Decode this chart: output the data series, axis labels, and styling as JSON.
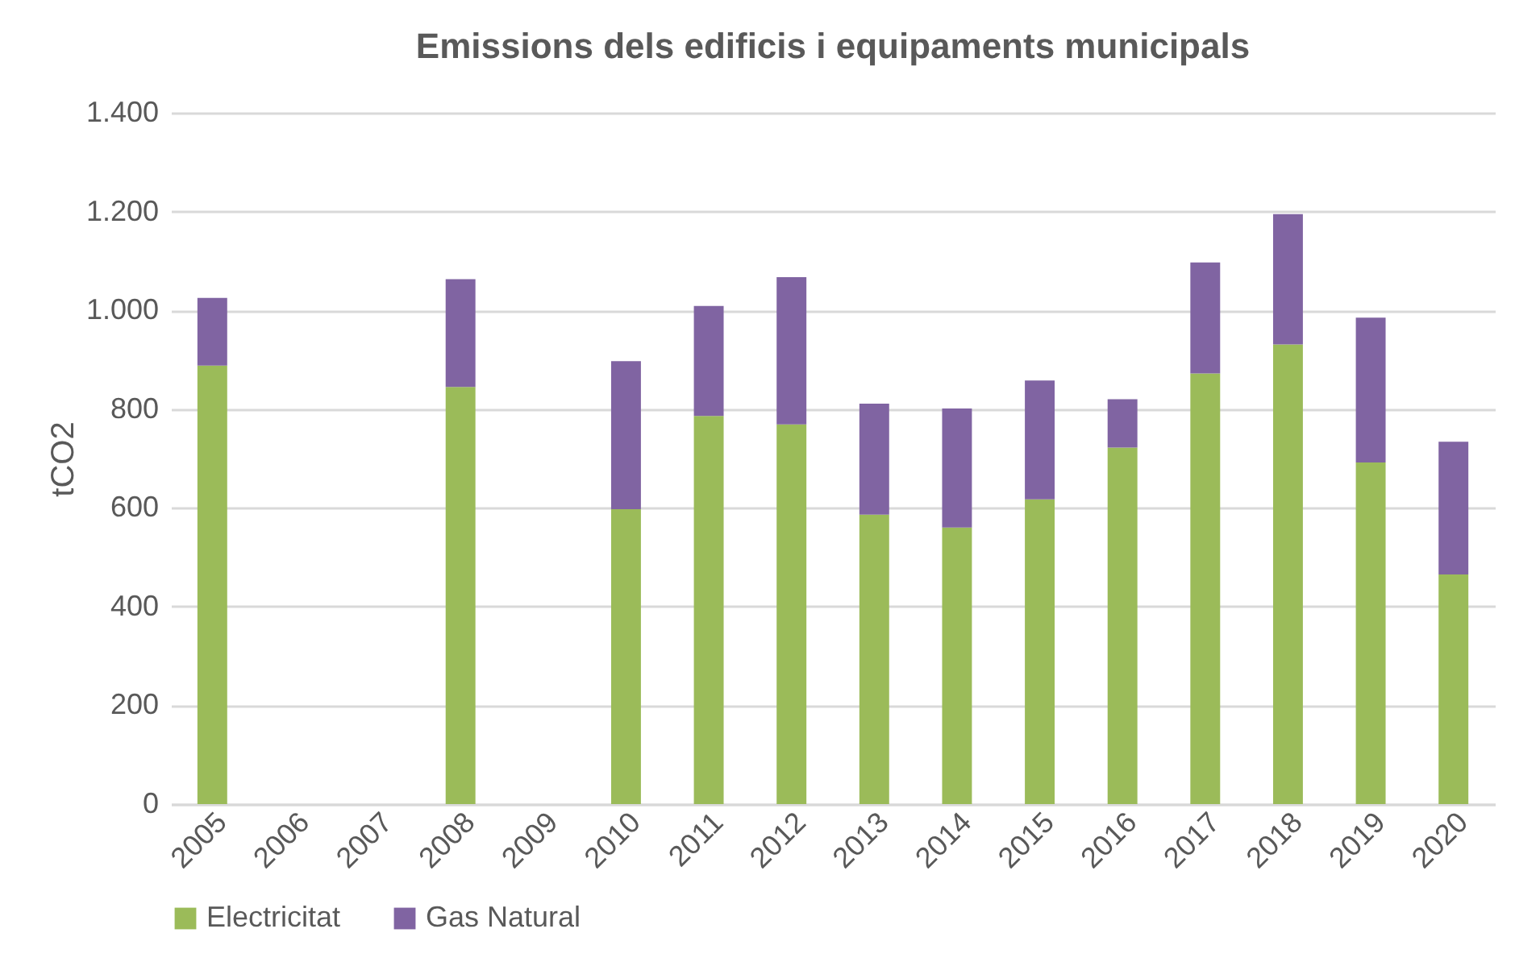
{
  "chart_data": {
    "type": "bar",
    "title": "Emissions dels edificis i equipaments municipals",
    "ylabel": "tCO2",
    "stacked": true,
    "categories": [
      "2005",
      "2006",
      "2007",
      "2008",
      "2009",
      "2010",
      "2011",
      "2012",
      "2013",
      "2014",
      "2015",
      "2016",
      "2017",
      "2018",
      "2019",
      "2020"
    ],
    "series": [
      {
        "name": "Electricitat",
        "color": "#9bbb59",
        "values": [
          888,
          null,
          null,
          845,
          null,
          597,
          786,
          769,
          586,
          560,
          617,
          722,
          872,
          931,
          692,
          465
        ]
      },
      {
        "name": "Gas Natural",
        "color": "#8064a2",
        "values": [
          137,
          null,
          null,
          218,
          null,
          300,
          223,
          298,
          225,
          241,
          241,
          98,
          225,
          264,
          293,
          269
        ]
      }
    ],
    "ylim": [
      0,
      1400
    ],
    "yticks": [
      {
        "value": 0,
        "label": "0"
      },
      {
        "value": 200,
        "label": "200"
      },
      {
        "value": 400,
        "label": "400"
      },
      {
        "value": 600,
        "label": "600"
      },
      {
        "value": 800,
        "label": "800"
      },
      {
        "value": 1000,
        "label": "1.000"
      },
      {
        "value": 1200,
        "label": "1.200"
      },
      {
        "value": 1400,
        "label": "1.400"
      }
    ],
    "grid": "y",
    "legend": "bottom"
  }
}
